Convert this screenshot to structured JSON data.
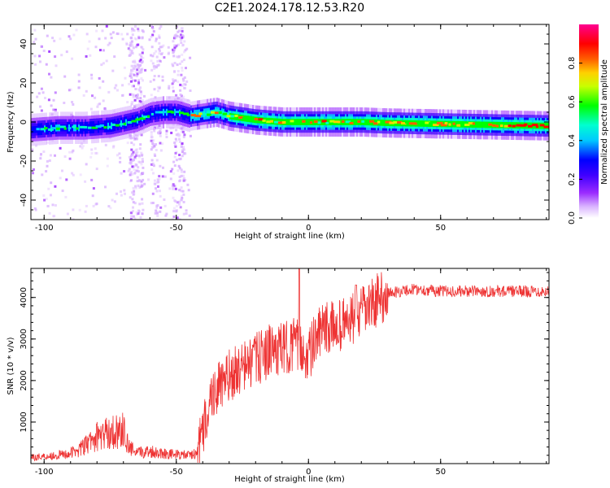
{
  "title": "C2E1.2024.178.12.53.R20",
  "chart_data": [
    {
      "type": "heatmap",
      "xlabel": "Height of straight line (km)",
      "ylabel": "Frequency (Hz)",
      "xlim": [
        -105,
        91
      ],
      "ylim": [
        -50,
        50
      ],
      "xticks": [
        -100,
        -50,
        0,
        50
      ],
      "yticks": [
        -40,
        -20,
        0,
        20,
        40
      ],
      "colorbar": {
        "label": "Normalized spectral amplitude",
        "range": [
          0,
          1
        ],
        "ticks": [
          "0.0",
          "0.2",
          "0.4",
          "0.6",
          "0.8"
        ],
        "colors": [
          "#ffffff",
          "#b15cff",
          "#5a00ff",
          "#0000ff",
          "#00ffff",
          "#00ff00",
          "#ffff00",
          "#ff6600",
          "#ff0000",
          "#ff0080"
        ]
      },
      "ridge": {
        "x": [
          -105,
          -95,
          -85,
          -75,
          -65,
          -60,
          -55,
          -50,
          -45,
          -40,
          -35,
          -30,
          -25,
          -20,
          -10,
          0,
          10,
          20,
          30,
          50,
          70,
          91
        ],
        "y": [
          -4,
          -3,
          -3,
          -2,
          1,
          4,
          5,
          5,
          3,
          4,
          5,
          3,
          2,
          1,
          0,
          0,
          0,
          0,
          -0.5,
          -1,
          -1.5,
          -2
        ]
      }
    },
    {
      "type": "line",
      "xlabel": "Height of straight line (km)",
      "ylabel": "SNR (10 * v/v)",
      "xlim": [
        -105,
        91
      ],
      "ylim": [
        0,
        4700
      ],
      "xticks": [
        -100,
        -50,
        0,
        50
      ],
      "yticks": [
        1000,
        2000,
        3000,
        4000
      ],
      "color": "#ee3333",
      "envelope": {
        "x": [
          -105,
          -95,
          -90,
          -85,
          -80,
          -75,
          -70,
          -68,
          -65,
          -60,
          -55,
          -50,
          -45,
          -42,
          -40,
          -38,
          -35,
          -32,
          -30,
          -25,
          -20,
          -15,
          -10,
          -5,
          -2,
          0,
          2,
          5,
          10,
          15,
          20,
          25,
          30,
          35,
          40,
          50,
          60,
          70,
          80,
          91
        ],
        "y": [
          150,
          200,
          250,
          400,
          650,
          750,
          800,
          400,
          250,
          300,
          250,
          220,
          200,
          250,
          700,
          1400,
          1800,
          1900,
          2100,
          2300,
          2500,
          2700,
          2750,
          2900,
          2700,
          2600,
          2900,
          3200,
          3300,
          3400,
          3600,
          3900,
          4100,
          4150,
          4200,
          4150,
          4150,
          4150,
          4150,
          4150
        ]
      }
    }
  ]
}
